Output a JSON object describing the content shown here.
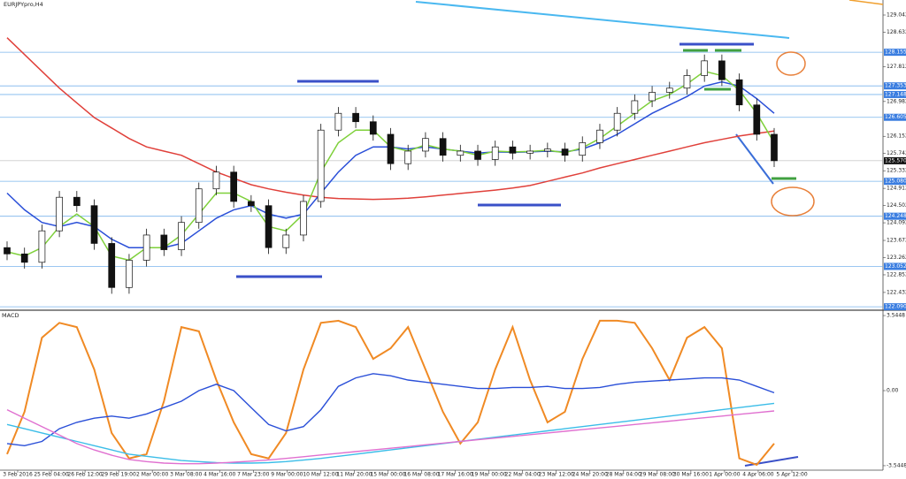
{
  "chart_data": [
    {
      "type": "candlestick",
      "title": "EURJPYpro,H4",
      "ylim": [
        122.03,
        129.4
      ],
      "yticks": [
        129.042,
        128.632,
        127.812,
        126.982,
        126.152,
        125.742,
        125.332,
        124.912,
        124.502,
        124.092,
        123.672,
        123.262,
        122.852,
        122.432
      ],
      "open": [
        123.5,
        123.35,
        123.15,
        123.9,
        124.7,
        124.5,
        123.6,
        122.55,
        123.2,
        123.8,
        123.45,
        124.1,
        124.9,
        125.3,
        124.6,
        124.5,
        123.5,
        123.8,
        124.6,
        126.3,
        126.7,
        126.5,
        126.2,
        125.5,
        125.8,
        126.1,
        125.7,
        125.8,
        125.6,
        125.9,
        125.75,
        125.8,
        125.85,
        125.7,
        126.0,
        126.3,
        126.7,
        127.0,
        127.2,
        127.3,
        127.6,
        127.95,
        127.5,
        126.9,
        126.2
      ],
      "high": [
        123.65,
        123.5,
        124.05,
        124.85,
        124.85,
        124.65,
        123.75,
        123.35,
        123.95,
        123.95,
        124.25,
        125.05,
        125.45,
        125.45,
        124.75,
        124.65,
        123.95,
        124.75,
        126.45,
        126.85,
        126.85,
        126.65,
        126.35,
        125.95,
        126.25,
        126.25,
        125.95,
        125.95,
        126.05,
        126.05,
        125.95,
        126.0,
        126.0,
        126.15,
        126.45,
        126.85,
        127.15,
        127.35,
        127.45,
        127.75,
        128.1,
        128.1,
        127.65,
        127.05,
        126.35
      ],
      "low": [
        123.2,
        123.0,
        123.0,
        123.75,
        124.35,
        123.45,
        122.4,
        122.4,
        123.05,
        123.3,
        123.3,
        123.95,
        124.75,
        124.45,
        124.35,
        123.35,
        123.35,
        123.65,
        124.45,
        126.15,
        126.35,
        126.05,
        125.35,
        125.35,
        125.65,
        125.55,
        125.55,
        125.45,
        125.45,
        125.6,
        125.6,
        125.65,
        125.55,
        125.55,
        125.85,
        126.15,
        126.55,
        126.85,
        127.05,
        127.15,
        127.45,
        127.35,
        126.75,
        126.05,
        125.42
      ],
      "close": [
        123.35,
        123.15,
        123.9,
        124.7,
        124.5,
        123.6,
        122.55,
        123.2,
        123.8,
        123.45,
        124.1,
        124.9,
        125.3,
        124.6,
        124.5,
        123.5,
        123.8,
        124.6,
        126.3,
        126.7,
        126.5,
        126.2,
        125.5,
        125.8,
        126.1,
        125.7,
        125.8,
        125.6,
        125.9,
        125.75,
        125.8,
        125.85,
        125.7,
        126.0,
        126.3,
        126.7,
        127.0,
        127.2,
        127.3,
        127.6,
        127.95,
        127.5,
        126.9,
        126.2,
        125.57
      ],
      "series": [
        {
          "color": "#e0403a",
          "values": [
            128.5,
            128.1,
            127.7,
            127.3,
            126.95,
            126.6,
            126.35,
            126.1,
            125.9,
            125.8,
            125.7,
            125.5,
            125.3,
            125.15,
            125.0,
            124.9,
            124.82,
            124.75,
            124.7,
            124.67,
            124.66,
            124.65,
            124.66,
            124.68,
            124.71,
            124.75,
            124.79,
            124.83,
            124.87,
            124.92,
            124.98,
            125.08,
            125.18,
            125.28,
            125.4,
            125.5,
            125.6,
            125.7,
            125.8,
            125.9,
            126.0,
            126.08,
            126.16,
            126.22,
            126.28
          ]
        },
        {
          "color": "#2a4fd8",
          "values": [
            124.8,
            124.4,
            124.1,
            124.0,
            124.1,
            124.0,
            123.7,
            123.5,
            123.5,
            123.5,
            123.6,
            123.9,
            124.2,
            124.4,
            124.5,
            124.3,
            124.2,
            124.3,
            124.8,
            125.3,
            125.7,
            125.9,
            125.9,
            125.85,
            125.9,
            125.85,
            125.8,
            125.75,
            125.78,
            125.77,
            125.78,
            125.8,
            125.78,
            125.85,
            126.0,
            126.2,
            126.45,
            126.7,
            126.9,
            127.1,
            127.35,
            127.45,
            127.35,
            127.05,
            126.7
          ]
        },
        {
          "color": "#7ed03a",
          "values": [
            123.4,
            123.3,
            123.5,
            124.0,
            124.3,
            124.0,
            123.3,
            123.2,
            123.5,
            123.5,
            123.8,
            124.3,
            124.8,
            124.8,
            124.6,
            124.0,
            123.9,
            124.3,
            125.3,
            126.0,
            126.3,
            126.3,
            125.9,
            125.8,
            125.95,
            125.85,
            125.8,
            125.7,
            125.8,
            125.78,
            125.79,
            125.82,
            125.76,
            125.88,
            126.1,
            126.4,
            126.7,
            127.0,
            127.15,
            127.4,
            127.7,
            127.6,
            127.25,
            126.7,
            126.0
          ]
        }
      ],
      "price_lines": [
        128.155,
        127.353,
        127.148,
        126.605,
        {
          "value": 125.08,
          "label": "125.080"
        },
        124.248,
        123.052,
        {
          "value": 122.09,
          "label": "122.090"
        }
      ],
      "current_price": {
        "value": 125.57,
        "label": "125.570"
      }
    },
    {
      "type": "line",
      "title": "MACD",
      "ylim": [
        -3.714,
        3.756
      ],
      "yticks": [
        3.5448,
        {
          "value": 0,
          "label": "0.00"
        },
        -3.5448
      ],
      "series": [
        {
          "color": "#f08a24",
          "values": [
            -3.0,
            -1.0,
            2.5,
            3.2,
            3.0,
            1.0,
            -2.0,
            -3.2,
            -3.0,
            -0.5,
            3.0,
            2.8,
            0.5,
            -1.5,
            -3.0,
            -3.2,
            -2.0,
            1.0,
            3.2,
            3.3,
            3.0,
            1.5,
            2.0,
            3.0,
            1.0,
            -1.0,
            -2.5,
            -1.5,
            1.0,
            3.0,
            0.5,
            -1.5,
            -1.0,
            1.5,
            3.3,
            3.3,
            3.2,
            2.0,
            0.5,
            2.5,
            3.0,
            2.0,
            -3.2,
            -3.5,
            -2.5
          ]
        },
        {
          "color": "#2a4fd8",
          "values": [
            -2.5,
            -2.6,
            -2.4,
            -1.8,
            -1.5,
            -1.3,
            -1.2,
            -1.3,
            -1.1,
            -0.8,
            -0.5,
            0.0,
            0.3,
            0.0,
            -0.8,
            -1.6,
            -1.9,
            -1.7,
            -0.9,
            0.2,
            0.6,
            0.8,
            0.7,
            0.5,
            0.4,
            0.3,
            0.2,
            0.1,
            0.1,
            0.15,
            0.15,
            0.2,
            0.1,
            0.1,
            0.15,
            0.3,
            0.4,
            0.45,
            0.5,
            0.55,
            0.6,
            0.6,
            0.5,
            0.2,
            -0.1
          ]
        },
        {
          "color": "#3bbde8",
          "values": [
            -1.6,
            -1.8,
            -2.0,
            -2.2,
            -2.4,
            -2.6,
            -2.8,
            -3.0,
            -3.1,
            -3.2,
            -3.3,
            -3.35,
            -3.4,
            -3.42,
            -3.42,
            -3.4,
            -3.35,
            -3.28,
            -3.2,
            -3.1,
            -3.0,
            -2.9,
            -2.8,
            -2.7,
            -2.6,
            -2.5,
            -2.4,
            -2.3,
            -2.2,
            -2.1,
            -2.0,
            -1.9,
            -1.8,
            -1.7,
            -1.6,
            -1.5,
            -1.4,
            -1.3,
            -1.2,
            -1.1,
            -1.0,
            -0.9,
            -0.8,
            -0.7,
            -0.6
          ]
        },
        {
          "color": "#e070d0",
          "values": [
            -0.9,
            -1.3,
            -1.7,
            -2.1,
            -2.5,
            -2.8,
            -3.05,
            -3.25,
            -3.35,
            -3.42,
            -3.45,
            -3.45,
            -3.42,
            -3.38,
            -3.33,
            -3.27,
            -3.2,
            -3.12,
            -3.04,
            -2.96,
            -2.88,
            -2.8,
            -2.72,
            -2.64,
            -2.56,
            -2.48,
            -2.4,
            -2.32,
            -2.24,
            -2.16,
            -2.08,
            -2.0,
            -1.92,
            -1.84,
            -1.76,
            -1.68,
            -1.6,
            -1.52,
            -1.44,
            -1.36,
            -1.28,
            -1.2,
            -1.12,
            -1.04,
            -0.96
          ]
        }
      ],
      "time_labels": [
        "3 Feb 2016",
        "25 Feb 04:00",
        "26 Feb 12:00",
        "29 Feb 19:00",
        "2 Mar 00:00",
        "3 Mar 08:00",
        "4 Mar 16:00",
        "7 Mar 23:00",
        "9 Mar 00:00",
        "10 Mar 12:00",
        "11 Mar 20:00",
        "15 Mar 00:00",
        "16 Mar 08:00",
        "17 Mar 16:00",
        "19 Mar 00:00",
        "22 Mar 04:00",
        "23 Mar 12:00",
        "24 Mar 20:00",
        "28 Mar 04:00",
        "29 Mar 08:00",
        "30 Mar 16:00",
        "1 Apr 00:00",
        "4 Apr 06:00",
        "5 Apr 12:00"
      ]
    }
  ]
}
